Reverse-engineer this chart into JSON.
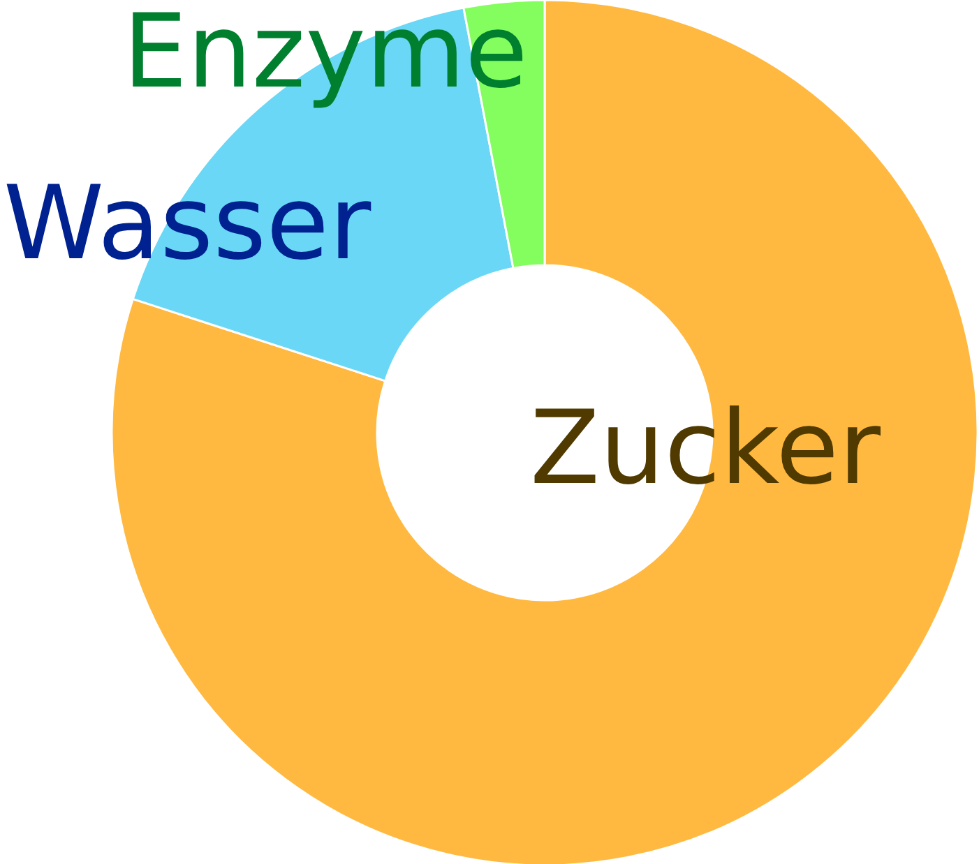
{
  "chart_data": {
    "type": "donut",
    "categories": [
      "Zucker",
      "Wasser",
      "Enzyme"
    ],
    "values": [
      80,
      17,
      3
    ],
    "colors": [
      "#ffb940",
      "#69d7f5",
      "#84fd5f"
    ]
  }
}
